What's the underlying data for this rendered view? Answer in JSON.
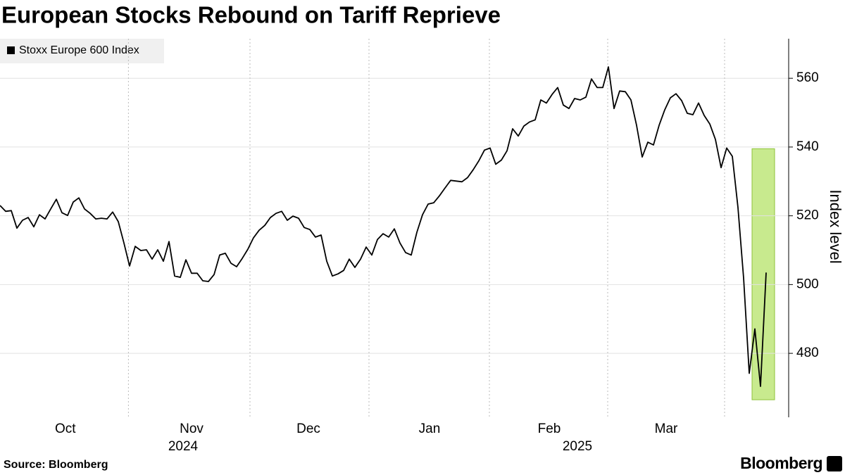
{
  "chart_data": {
    "type": "line",
    "title": "European Stocks Rebound on Tariff Reprieve",
    "y_label": "Index level",
    "source": "Source: Bloomberg",
    "brand": "Bloomberg",
    "series": [
      {
        "name": "Stoxx Europe 600 Index",
        "color": "#000000",
        "values": [
          523,
          521.3,
          521.5,
          516.4,
          518.7,
          519.5,
          516.8,
          520.3,
          519.1,
          522,
          524.8,
          520.9,
          520.1,
          524,
          525.2,
          522,
          520.7,
          519.1,
          519.3,
          519.1,
          521.1,
          518.3,
          512.1,
          505.4,
          511.1,
          509.9,
          510.1,
          507.4,
          510.1,
          506.8,
          512.5,
          502.5,
          502.1,
          507.2,
          503.3,
          503.3,
          501.1,
          500.9,
          502.9,
          508.6,
          509.1,
          506.2,
          505.2,
          507.6,
          510.3,
          513.6,
          515.8,
          517.2,
          519.5,
          520.7,
          521.3,
          518.7,
          519.9,
          519.3,
          516.6,
          516,
          513.8,
          514.4,
          506.8,
          502.5,
          503.1,
          504.1,
          507.4,
          505,
          507.4,
          510.9,
          508.6,
          513.1,
          514.8,
          513.8,
          516.2,
          512.1,
          509.3,
          508.6,
          515.2,
          520.3,
          523.4,
          523.8,
          525.8,
          528.1,
          530.3,
          530.1,
          529.9,
          531.1,
          533.4,
          536,
          539.1,
          539.7,
          535,
          536.2,
          538.9,
          545.3,
          543.2,
          546.1,
          547.3,
          547.9,
          553.7,
          552.8,
          555.3,
          557.3,
          552.2,
          551.2,
          554.1,
          553.7,
          554.5,
          559.8,
          557.3,
          557.3,
          563.3,
          551.2,
          556.3,
          556.1,
          553.7,
          546.3,
          537.1,
          541.4,
          540.6,
          546.3,
          550.8,
          554.3,
          555.5,
          553.5,
          549.8,
          549.4,
          552.8,
          549.2,
          546.7,
          542.2,
          534,
          539.7,
          537.3,
          522.4,
          501.9,
          474.2,
          487.1,
          470.4,
          503.5
        ]
      }
    ],
    "xlim": [
      0,
      136
    ],
    "xticks": [
      {
        "value": 11.6,
        "label": "Oct"
      },
      {
        "value": 34,
        "label": "Nov"
      },
      {
        "value": 54.75,
        "label": "Dec"
      },
      {
        "value": 76.25,
        "label": "Jan"
      },
      {
        "value": 97.5,
        "label": "Feb"
      },
      {
        "value": 118.25,
        "label": "Mar"
      }
    ],
    "year_ticks": [
      {
        "value": 32.5,
        "label": "2024"
      },
      {
        "value": 102.5,
        "label": "2025"
      }
    ],
    "ylim": [
      461.4,
      571.5
    ],
    "yticks": [
      480,
      500,
      520,
      540,
      560
    ],
    "grid": true,
    "highlight": {
      "xlim": [
        133.5,
        137.5
      ],
      "ylim": [
        466.5,
        539.5
      ],
      "color": "#c8ea8e"
    }
  }
}
